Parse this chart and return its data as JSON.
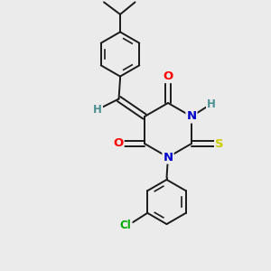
{
  "bg_color": "#ebebeb",
  "bond_color": "#1a1a1a",
  "bond_width": 1.4,
  "atom_colors": {
    "O": "#ff0000",
    "N": "#0000cc",
    "S": "#cccc00",
    "Cl": "#00aa00",
    "H": "#4a9090",
    "C": "#1a1a1a"
  },
  "font_size": 8.5,
  "fig_size": [
    3.0,
    3.0
  ],
  "dpi": 100
}
